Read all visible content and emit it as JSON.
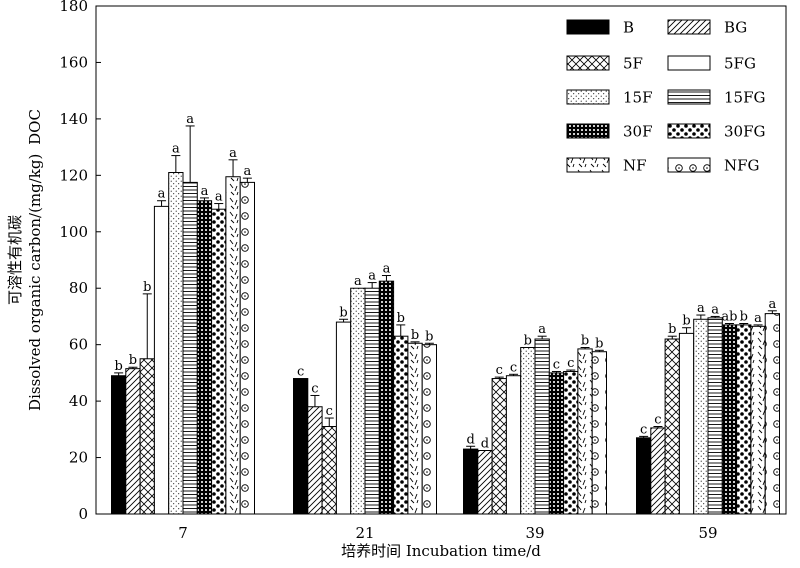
{
  "chart_data": {
    "type": "bar",
    "title": "",
    "xlabel": "培养时间 Incubation time/d",
    "ylabel": [
      "可溶性有机碳",
      "Dissolved organic carbon/(mg/kg)",
      "DOC"
    ],
    "ylim": [
      0,
      180
    ],
    "yticks": [
      0,
      20,
      40,
      60,
      80,
      100,
      120,
      140,
      160,
      180
    ],
    "categories": [
      "7",
      "21",
      "39",
      "59"
    ],
    "legend_position": "top-right",
    "grid": false,
    "series": [
      {
        "name": "B",
        "pattern": "solid",
        "values": [
          49,
          48,
          23,
          27
        ],
        "errors": [
          1,
          0,
          1,
          0.5
        ],
        "letters": [
          "b",
          "c",
          "d",
          "c"
        ]
      },
      {
        "name": "BG",
        "pattern": "diag-fwd",
        "values": [
          51.5,
          38,
          22.5,
          30.5
        ],
        "errors": [
          0.5,
          4,
          0,
          0.5
        ],
        "letters": [
          "b",
          "c",
          "d",
          "c"
        ]
      },
      {
        "name": "5F",
        "pattern": "crosshatch",
        "values": [
          55,
          31,
          48,
          62
        ],
        "errors": [
          23,
          3,
          0.5,
          1
        ],
        "letters": [
          "b",
          "c",
          "c",
          "b"
        ]
      },
      {
        "name": "5FG",
        "pattern": "blank",
        "values": [
          109,
          68,
          49,
          64
        ],
        "errors": [
          2,
          1,
          0.5,
          2
        ],
        "letters": [
          "a",
          "b",
          "c",
          "b"
        ]
      },
      {
        "name": "15F",
        "pattern": "dots",
        "values": [
          121,
          80,
          59,
          69
        ],
        "errors": [
          6,
          0,
          0,
          1.5
        ],
        "letters": [
          "a",
          "a",
          "b",
          "a"
        ]
      },
      {
        "name": "15FG",
        "pattern": "hlines",
        "values": [
          117.5,
          80,
          62,
          69.5
        ],
        "errors": [
          20,
          2,
          1,
          0.5
        ],
        "letters": [
          "a",
          "a",
          "a",
          "a"
        ]
      },
      {
        "name": "30F",
        "pattern": "grid",
        "values": [
          111,
          82.5,
          50,
          67
        ],
        "errors": [
          1,
          2,
          0.5,
          0.5
        ],
        "letters": [
          "a",
          "a",
          "c",
          "ab"
        ]
      },
      {
        "name": "30FG",
        "pattern": "bigdots",
        "values": [
          108,
          63,
          50.5,
          67
        ],
        "errors": [
          2,
          4,
          0.5,
          0.5
        ],
        "letters": [
          "a",
          "b",
          "c",
          "b"
        ]
      },
      {
        "name": "NF",
        "pattern": "dashes",
        "values": [
          119.5,
          60.5,
          58.5,
          66.5
        ],
        "errors": [
          6,
          0.5,
          0.5,
          0.5
        ],
        "letters": [
          "a",
          "b",
          "b",
          "a"
        ]
      },
      {
        "name": "NFG",
        "pattern": "circles",
        "values": [
          117.5,
          60,
          57.5,
          71
        ],
        "errors": [
          1.5,
          0.5,
          0.5,
          1
        ],
        "letters": [
          "a",
          "b",
          "b",
          "a"
        ]
      }
    ]
  }
}
